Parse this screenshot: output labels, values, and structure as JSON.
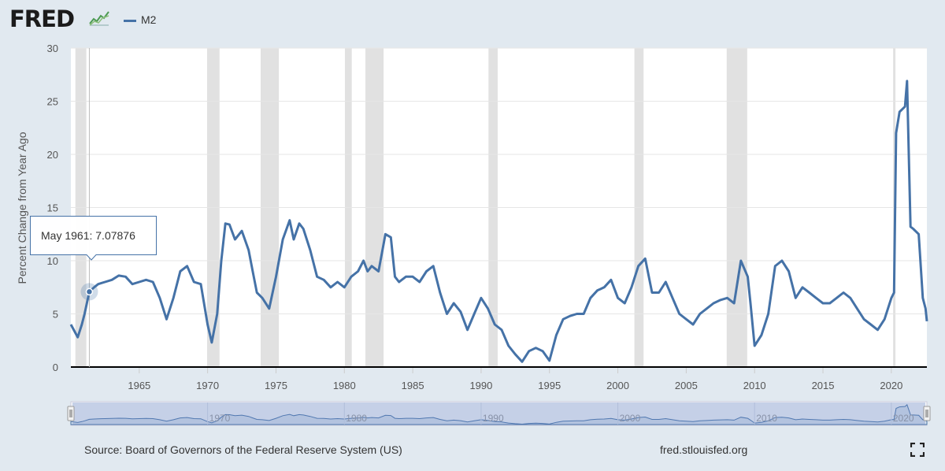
{
  "header": {
    "logo_text": "FRED",
    "logo_icon": "chart-line-icon"
  },
  "legend": {
    "series_name": "M2",
    "color": "#4572a7"
  },
  "tooltip": {
    "date": "May 1961",
    "value": "7.07876",
    "separator": ":"
  },
  "footer": {
    "source": "Source: Board of Governors of the Federal Reserve System (US)",
    "site": "fred.stlouisfed.org",
    "fullscreen_icon": "fullscreen-icon"
  },
  "chart_data": {
    "type": "line",
    "title": "",
    "xlabel": "",
    "ylabel": "Percent Change from Year Ago",
    "xlim": [
      1960.0,
      2022.6
    ],
    "ylim": [
      0,
      30
    ],
    "yticks": [
      0,
      5,
      10,
      15,
      20,
      25,
      30
    ],
    "xticks": [
      1965,
      1970,
      1975,
      1980,
      1985,
      1990,
      1995,
      2000,
      2005,
      2010,
      2015,
      2020
    ],
    "navigator_ticks": [
      1970,
      1980,
      1990,
      2000,
      2010,
      2020
    ],
    "grid": true,
    "series_color": "#4572a7",
    "recessions": [
      [
        1960.33,
        1961.13
      ],
      [
        1969.96,
        1970.87
      ],
      [
        1973.88,
        1975.21
      ],
      [
        1980.04,
        1980.54
      ],
      [
        1981.54,
        1982.87
      ],
      [
        1990.54,
        1991.21
      ],
      [
        2001.21,
        2001.88
      ],
      [
        2007.96,
        2009.46
      ],
      [
        2020.13,
        2020.29
      ]
    ],
    "highlight": {
      "x": 1961.35,
      "y": 7.07876
    },
    "series": [
      {
        "name": "M2",
        "x": [
          1960.0,
          1960.5,
          1960.8,
          1961.0,
          1961.35,
          1961.7,
          1962.0,
          1962.5,
          1963.0,
          1963.5,
          1964.0,
          1964.5,
          1965.0,
          1965.5,
          1966.0,
          1966.5,
          1967.0,
          1967.5,
          1968.0,
          1968.5,
          1969.0,
          1969.5,
          1970.0,
          1970.3,
          1970.7,
          1971.0,
          1971.3,
          1971.6,
          1972.0,
          1972.5,
          1973.0,
          1973.3,
          1973.6,
          1974.0,
          1974.5,
          1975.0,
          1975.5,
          1976.0,
          1976.3,
          1976.7,
          1977.0,
          1977.5,
          1978.0,
          1978.5,
          1979.0,
          1979.5,
          1980.0,
          1980.5,
          1981.0,
          1981.4,
          1981.7,
          1982.0,
          1982.5,
          1983.0,
          1983.4,
          1983.7,
          1984.0,
          1984.5,
          1985.0,
          1985.5,
          1986.0,
          1986.5,
          1987.0,
          1987.5,
          1988.0,
          1988.5,
          1989.0,
          1989.5,
          1990.0,
          1990.5,
          1991.0,
          1991.5,
          1992.0,
          1992.5,
          1993.0,
          1993.5,
          1994.0,
          1994.5,
          1995.0,
          1995.5,
          1996.0,
          1996.5,
          1997.0,
          1997.5,
          1998.0,
          1998.5,
          1999.0,
          1999.5,
          2000.0,
          2000.5,
          2001.0,
          2001.5,
          2002.0,
          2002.5,
          2003.0,
          2003.5,
          2004.0,
          2004.5,
          2005.0,
          2005.5,
          2006.0,
          2006.5,
          2007.0,
          2007.5,
          2008.0,
          2008.5,
          2009.0,
          2009.5,
          2009.7,
          2010.0,
          2010.5,
          2011.0,
          2011.5,
          2012.0,
          2012.5,
          2013.0,
          2013.5,
          2014.0,
          2014.5,
          2015.0,
          2015.5,
          2016.0,
          2016.5,
          2017.0,
          2017.5,
          2018.0,
          2018.5,
          2019.0,
          2019.5,
          2020.0,
          2020.2,
          2020.35,
          2020.6,
          2021.0,
          2021.15,
          2021.4,
          2021.6,
          2022.0,
          2022.3,
          2022.5,
          2022.6
        ],
        "values": [
          4.0,
          2.8,
          4.0,
          5.0,
          7.08,
          7.5,
          7.8,
          8.0,
          8.2,
          8.6,
          8.5,
          7.8,
          8.0,
          8.2,
          8.0,
          6.5,
          4.5,
          6.5,
          9.0,
          9.5,
          8.0,
          7.8,
          4.0,
          2.3,
          5.0,
          10.0,
          13.5,
          13.4,
          12.0,
          12.8,
          11.0,
          9.0,
          7.0,
          6.5,
          5.5,
          8.5,
          12.0,
          13.8,
          12.0,
          13.5,
          13.0,
          11.0,
          8.5,
          8.2,
          7.5,
          8.0,
          7.5,
          8.5,
          9.0,
          10.0,
          9.0,
          9.5,
          9.0,
          12.5,
          12.2,
          8.5,
          8.0,
          8.5,
          8.5,
          8.0,
          9.0,
          9.5,
          7.0,
          5.0,
          6.0,
          5.2,
          3.5,
          5.0,
          6.5,
          5.5,
          4.0,
          3.5,
          2.0,
          1.2,
          0.5,
          1.5,
          1.8,
          1.5,
          0.6,
          3.0,
          4.5,
          4.8,
          5.0,
          5.0,
          6.5,
          7.2,
          7.5,
          8.2,
          6.5,
          6.0,
          7.5,
          9.5,
          10.2,
          7.0,
          7.0,
          8.0,
          6.5,
          5.0,
          4.5,
          4.0,
          5.0,
          5.5,
          6.0,
          6.3,
          6.5,
          6.0,
          10.0,
          8.5,
          6.0,
          2.0,
          3.0,
          5.0,
          9.5,
          10.0,
          9.0,
          6.5,
          7.5,
          7.0,
          6.5,
          6.0,
          6.0,
          6.5,
          7.0,
          6.5,
          5.5,
          4.5,
          4.0,
          3.5,
          4.5,
          6.5,
          7.0,
          22.0,
          24.0,
          24.5,
          26.9,
          13.2,
          13.0,
          12.5,
          6.5,
          5.5,
          4.3
        ]
      }
    ]
  }
}
